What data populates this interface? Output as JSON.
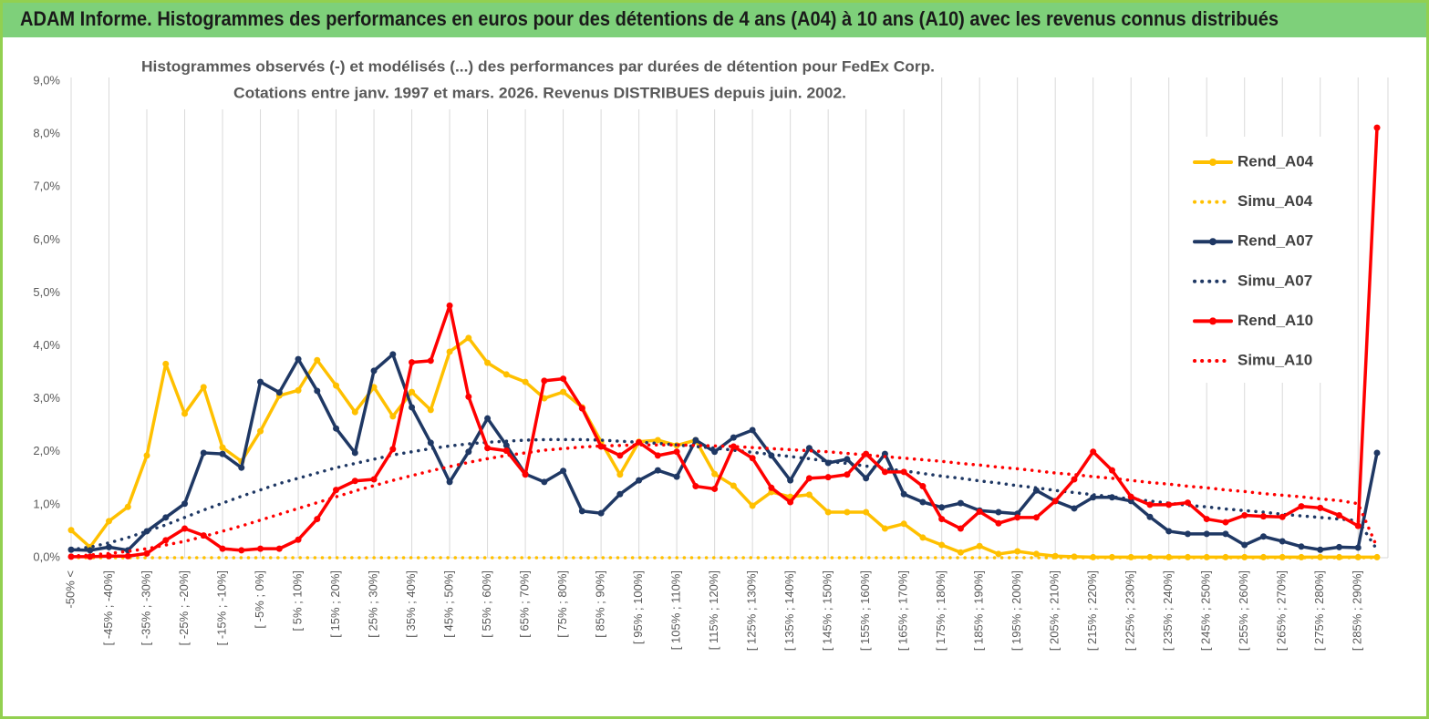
{
  "header": {
    "title": "ADAM Informe. Histogrammes des performances en euros pour des détentions de 4 ans (A04) à 10 ans (A10) avec les revenus connus distribués"
  },
  "chart_data": {
    "type": "line",
    "title": [
      "Histogrammes observés (-) et modélisés (...) des performances par durées de détention pour FedEx Corp.",
      "Cotations entre janv. 1997 et mars. 2026. Revenus DISTRIBUES depuis juin. 2002."
    ],
    "categories": [
      "-50% <",
      null,
      "[ -45% ; -40%]",
      null,
      "[ -35% ; -30%]",
      null,
      "[ -25% ; -20%]",
      null,
      "[ -15% ; -10%]",
      null,
      "[ -5% ; 0%]",
      null,
      "[ 5% ; 10%]",
      null,
      "[ 15% ; 20%]",
      null,
      "[ 25% ; 30%]",
      null,
      "[ 35% ; 40%]",
      null,
      "[ 45% ; 50%]",
      null,
      "[ 55% ; 60%]",
      null,
      "[ 65% ; 70%]",
      null,
      "[ 75% ; 80%]",
      null,
      "[ 85% ; 90%]",
      null,
      "[ 95% ; 100%]",
      null,
      "[ 105% ; 110%]",
      null,
      "[ 115% ; 120%]",
      null,
      "[ 125% ; 130%]",
      null,
      "[ 135% ; 140%]",
      null,
      "[ 145% ; 150%]",
      null,
      "[ 155% ; 160%]",
      null,
      "[ 165% ; 170%]",
      null,
      "[ 175% ; 180%]",
      null,
      "[ 185% ; 190%]",
      null,
      "[ 195% ; 200%]",
      null,
      "[ 205% ; 210%]",
      null,
      "[ 215% ; 220%]",
      null,
      "[ 225% ; 230%]",
      null,
      "[ 235% ; 240%]",
      null,
      "[ 245% ; 250%]",
      null,
      "[ 255% ; 260%]",
      null,
      "[ 265% ; 270%]",
      null,
      "[ 275% ; 280%]",
      null,
      "[ 285% ; 290%]",
      null
    ],
    "ylim": [
      0,
      9
    ],
    "yticks": [
      {
        "value": 0,
        "label": "0,0%"
      },
      {
        "value": 1,
        "label": "1,0%"
      },
      {
        "value": 2,
        "label": "2,0%"
      },
      {
        "value": 3,
        "label": "3,0%"
      },
      {
        "value": 4,
        "label": "4,0%"
      },
      {
        "value": 5,
        "label": "5,0%"
      },
      {
        "value": 6,
        "label": "6,0%"
      },
      {
        "value": 7,
        "label": "7,0%"
      },
      {
        "value": 8,
        "label": "8,0%"
      },
      {
        "value": 9,
        "label": "9,0%"
      }
    ],
    "legend": "right",
    "series": [
      {
        "name": "Rend_A04",
        "color": "#ffc000",
        "style": "solid",
        "values": [
          0.52,
          0.2,
          0.69,
          0.96,
          1.93,
          3.66,
          2.72,
          3.22,
          2.08,
          1.82,
          2.39,
          3.06,
          3.16,
          3.73,
          3.25,
          2.75,
          3.22,
          2.67,
          3.13,
          2.79,
          3.89,
          4.15,
          3.68,
          3.46,
          3.32,
          3.01,
          3.13,
          2.84,
          2.19,
          1.57,
          2.19,
          2.22,
          2.12,
          2.22,
          1.58,
          1.36,
          0.98,
          1.24,
          1.15,
          1.19,
          0.86,
          0.86,
          0.86,
          0.55,
          0.64,
          0.38,
          0.24,
          0.1,
          0.22,
          0.07,
          0.12,
          0.07,
          0.03,
          0.02,
          0.01,
          0.01,
          0.01,
          0.01,
          0.01,
          0.01,
          0.01,
          0.01,
          0.01,
          0.01,
          0.01,
          0.01,
          0.01,
          0.01,
          0.01,
          0.01
        ]
      },
      {
        "name": "Simu_A04",
        "color": "#ffc000",
        "style": "dotted",
        "values": [
          0,
          0,
          0,
          0,
          0,
          0,
          0,
          0,
          0,
          0,
          0,
          0,
          0,
          0,
          0,
          0,
          0,
          0,
          0,
          0,
          0,
          0,
          0,
          0,
          0,
          0,
          0,
          0,
          0,
          0,
          0,
          0,
          0,
          0,
          0,
          0,
          0,
          0,
          0,
          0,
          0,
          0,
          0,
          0,
          0,
          0,
          0,
          0,
          0,
          0,
          0,
          0,
          0,
          0,
          0,
          0,
          0,
          0,
          0,
          0,
          0,
          0,
          0,
          0,
          0,
          0,
          0,
          0,
          0,
          0
        ]
      },
      {
        "name": "Rend_A07",
        "color": "#1f3864",
        "style": "solid",
        "values": [
          0.15,
          0.14,
          0.2,
          0.14,
          0.5,
          0.76,
          1.02,
          1.98,
          1.96,
          1.7,
          3.32,
          3.12,
          3.75,
          3.15,
          2.44,
          1.98,
          3.53,
          3.84,
          2.84,
          2.17,
          1.43,
          2.0,
          2.63,
          2.12,
          1.58,
          1.43,
          1.64,
          0.88,
          0.84,
          1.2,
          1.46,
          1.65,
          1.53,
          2.22,
          2.0,
          2.27,
          2.41,
          1.93,
          1.46,
          2.07,
          1.79,
          1.86,
          1.5,
          1.96,
          1.2,
          1.05,
          0.95,
          1.03,
          0.89,
          0.86,
          0.83,
          1.27,
          1.07,
          0.93,
          1.14,
          1.14,
          1.07,
          0.77,
          0.5,
          0.45,
          0.45,
          0.45,
          0.24,
          0.4,
          0.31,
          0.21,
          0.15,
          0.2,
          0.19,
          1.98
        ]
      },
      {
        "name": "Simu_A07",
        "color": "#1f3864",
        "style": "dotted",
        "values": [
          0.15,
          0.2,
          0.28,
          0.38,
          0.5,
          0.62,
          0.76,
          0.9,
          1.03,
          1.16,
          1.28,
          1.4,
          1.5,
          1.6,
          1.7,
          1.78,
          1.86,
          1.94,
          2.0,
          2.06,
          2.11,
          2.15,
          2.18,
          2.2,
          2.22,
          2.23,
          2.23,
          2.23,
          2.22,
          2.2,
          2.18,
          2.16,
          2.13,
          2.1,
          2.07,
          2.03,
          1.99,
          1.95,
          1.91,
          1.87,
          1.82,
          1.78,
          1.73,
          1.68,
          1.64,
          1.59,
          1.54,
          1.5,
          1.45,
          1.41,
          1.36,
          1.32,
          1.27,
          1.23,
          1.19,
          1.15,
          1.11,
          1.07,
          1.03,
          0.99,
          0.96,
          0.92,
          0.89,
          0.86,
          0.82,
          0.79,
          0.76,
          0.73,
          0.7,
          0.15
        ]
      },
      {
        "name": "Rend_A10",
        "color": "#ff0000",
        "style": "solid",
        "values": [
          0.02,
          0.02,
          0.03,
          0.03,
          0.08,
          0.33,
          0.55,
          0.42,
          0.17,
          0.14,
          0.17,
          0.17,
          0.34,
          0.73,
          1.28,
          1.45,
          1.48,
          2.05,
          3.69,
          3.72,
          4.76,
          3.04,
          2.07,
          2.02,
          1.57,
          3.34,
          3.38,
          2.82,
          2.1,
          1.93,
          2.18,
          1.93,
          2.0,
          1.35,
          1.3,
          2.1,
          1.88,
          1.32,
          1.05,
          1.5,
          1.52,
          1.57,
          1.96,
          1.62,
          1.62,
          1.35,
          0.73,
          0.55,
          0.87,
          0.65,
          0.76,
          0.76,
          1.07,
          1.48,
          2.0,
          1.65,
          1.15,
          1.0,
          1.0,
          1.04,
          0.73,
          0.67,
          0.8,
          0.78,
          0.77,
          0.97,
          0.94,
          0.8,
          0.6,
          8.12
        ]
      },
      {
        "name": "Simu_A10",
        "color": "#ff0000",
        "style": "dotted",
        "values": [
          0.03,
          0.05,
          0.08,
          0.12,
          0.17,
          0.24,
          0.31,
          0.4,
          0.5,
          0.6,
          0.71,
          0.82,
          0.93,
          1.04,
          1.15,
          1.26,
          1.36,
          1.46,
          1.55,
          1.64,
          1.72,
          1.8,
          1.87,
          1.93,
          1.98,
          2.03,
          2.06,
          2.09,
          2.11,
          2.12,
          2.13,
          2.13,
          2.13,
          2.12,
          2.11,
          2.1,
          2.08,
          2.06,
          2.04,
          2.02,
          2.0,
          1.97,
          1.94,
          1.91,
          1.88,
          1.85,
          1.82,
          1.78,
          1.75,
          1.71,
          1.68,
          1.64,
          1.6,
          1.57,
          1.53,
          1.5,
          1.46,
          1.42,
          1.39,
          1.35,
          1.32,
          1.28,
          1.25,
          1.21,
          1.18,
          1.15,
          1.11,
          1.08,
          1.02,
          0.2
        ]
      }
    ]
  }
}
